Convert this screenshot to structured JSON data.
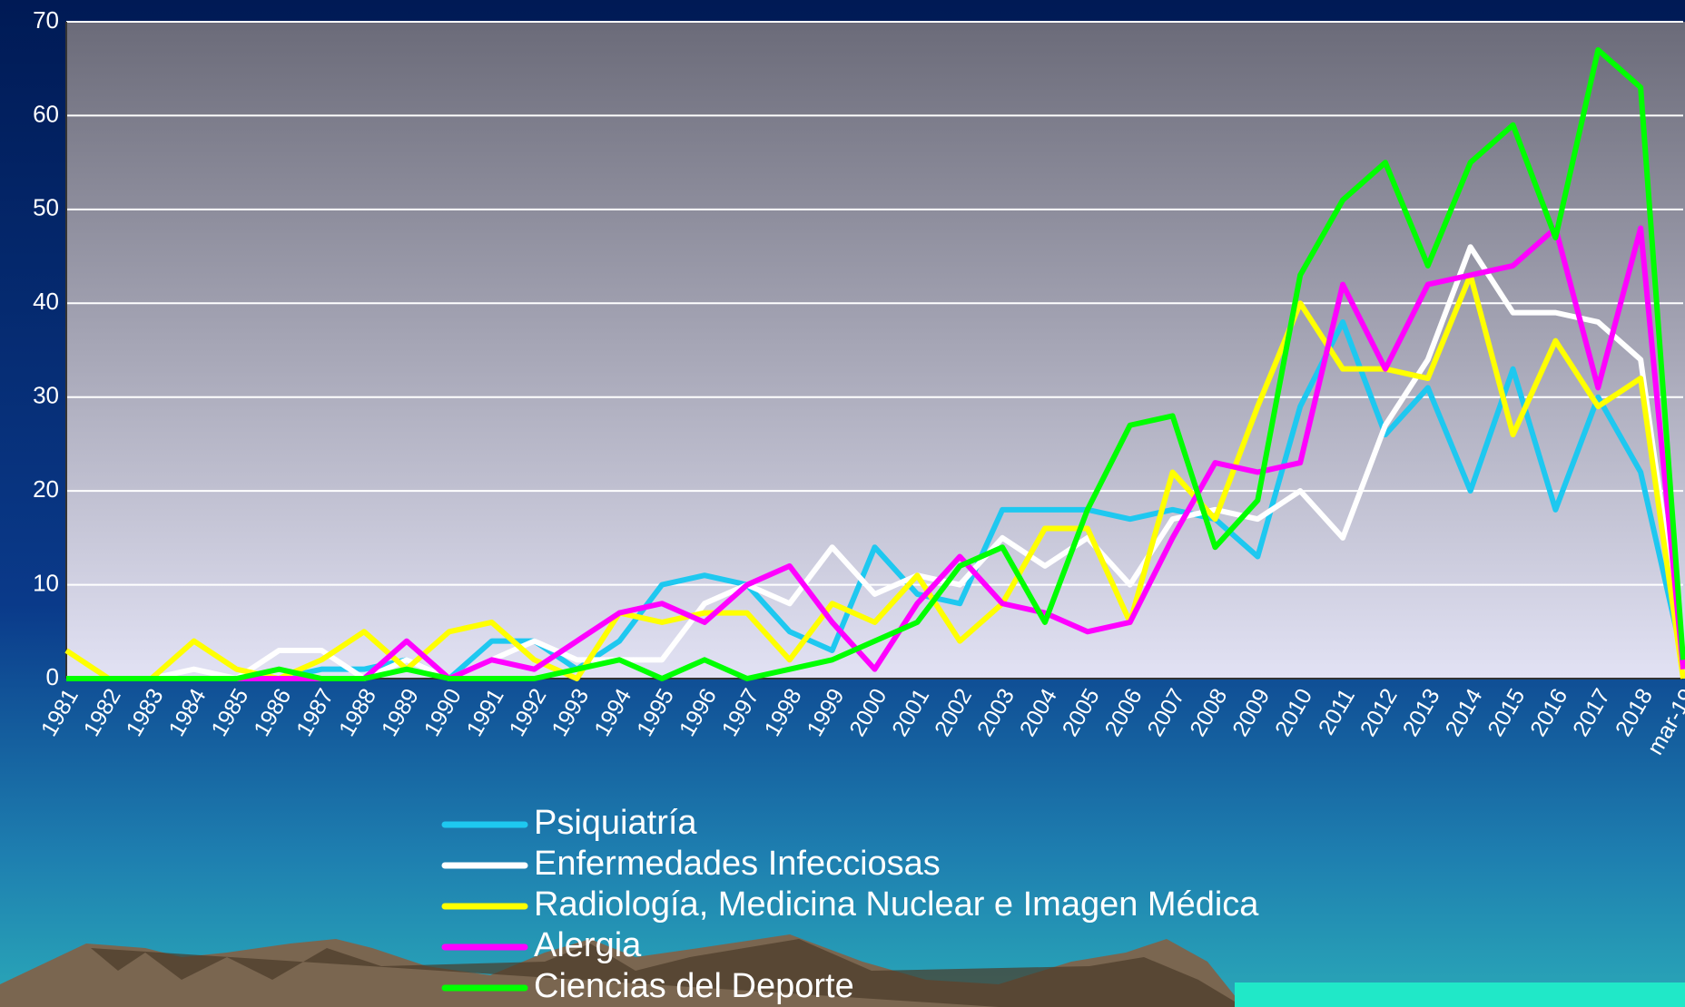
{
  "chart_data": {
    "type": "line",
    "categories": [
      "1981",
      "1982",
      "1983",
      "1984",
      "1985",
      "1986",
      "1987",
      "1988",
      "1989",
      "1990",
      "1991",
      "1992",
      "1993",
      "1994",
      "1995",
      "1996",
      "1997",
      "1998",
      "1999",
      "2000",
      "2001",
      "2002",
      "2003",
      "2004",
      "2005",
      "2006",
      "2007",
      "2008",
      "2009",
      "2010",
      "2011",
      "2012",
      "2013",
      "2014",
      "2015",
      "2016",
      "2017",
      "2018",
      "mar-19"
    ],
    "series": [
      {
        "name": "Psiquiatría",
        "color": "#1ec8f0",
        "values": [
          0,
          0,
          0,
          0,
          0,
          0,
          1,
          1,
          2,
          0,
          4,
          4,
          1,
          4,
          10,
          11,
          10,
          5,
          3,
          14,
          9,
          8,
          18,
          18,
          18,
          17,
          18,
          17,
          13,
          29,
          38,
          26,
          31,
          20,
          33,
          18,
          30,
          22,
          2
        ]
      },
      {
        "name": "Enfermedades Infecciosas",
        "color": "#ffffff",
        "values": [
          0,
          0,
          0,
          1,
          0,
          3,
          3,
          0,
          2,
          0,
          2,
          4,
          2,
          2,
          2,
          8,
          10,
          8,
          14,
          9,
          11,
          10,
          15,
          12,
          15,
          10,
          17,
          18,
          17,
          20,
          15,
          27,
          34,
          46,
          39,
          39,
          38,
          34,
          2
        ]
      },
      {
        "name": "Radiología, Medicina Nuclear e Imagen Médica",
        "color": "#ffff00",
        "values": [
          3,
          0,
          0,
          4,
          1,
          0,
          2,
          5,
          1,
          5,
          6,
          2,
          0,
          7,
          6,
          7,
          7,
          2,
          8,
          6,
          11,
          4,
          8,
          16,
          16,
          6,
          22,
          17,
          29,
          40,
          33,
          33,
          32,
          43,
          26,
          36,
          29,
          32,
          0
        ]
      },
      {
        "name": "Alergia",
        "color": "#ff00ff",
        "values": [
          0,
          0,
          0,
          0,
          0,
          0,
          0,
          0,
          4,
          0,
          2,
          1,
          4,
          7,
          8,
          6,
          10,
          12,
          6,
          1,
          8,
          13,
          8,
          7,
          5,
          6,
          15,
          23,
          22,
          23,
          42,
          33,
          42,
          43,
          44,
          48,
          31,
          48,
          1
        ]
      },
      {
        "name": "Ciencias del Deporte",
        "color": "#00ff00",
        "values": [
          0,
          0,
          0,
          0,
          0,
          1,
          0,
          0,
          1,
          0,
          0,
          0,
          1,
          2,
          0,
          2,
          0,
          1,
          2,
          4,
          6,
          12,
          14,
          6,
          18,
          27,
          28,
          14,
          19,
          43,
          51,
          55,
          44,
          55,
          59,
          47,
          67,
          63,
          2
        ]
      }
    ],
    "ylim": [
      0,
      70
    ],
    "yticks": [
      0,
      10,
      20,
      30,
      40,
      50,
      60,
      70
    ],
    "grid": true
  }
}
